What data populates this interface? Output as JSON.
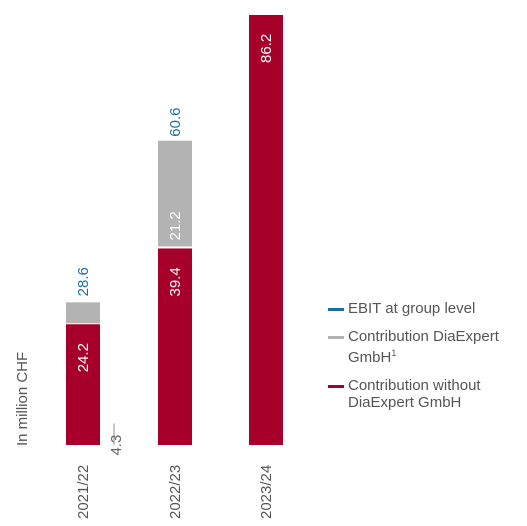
{
  "chart_data": {
    "type": "bar",
    "stacked": true,
    "unit_label": "In million CHF",
    "categories": [
      "2021/22",
      "2022/23",
      "2023/24"
    ],
    "series": [
      {
        "name": "Contribution without DiaExpert GmbH",
        "color": "#a6002a",
        "values": [
          24.2,
          39.4,
          86.2
        ]
      },
      {
        "name": "Contribution DiaExpert GmbH",
        "footnote": "1",
        "color": "#b3b3b3",
        "values": [
          4.3,
          21.2,
          null
        ]
      }
    ],
    "group_totals": {
      "name": "EBIT at group level",
      "color": "#1a6fa0",
      "values": [
        28.6,
        60.6,
        86.2
      ],
      "labels": [
        "28.6",
        "60.6",
        ""
      ]
    },
    "segment_labels": {
      "Contribution without DiaExpert GmbH": [
        "24.2",
        "39.4",
        "86.2"
      ],
      "Contribution DiaExpert GmbH": [
        "4.3",
        "21.2",
        ""
      ]
    },
    "legend": [
      "EBIT at group level",
      "Contribution DiaExpert GmbH",
      "Contribution without DiaExpert GmbH"
    ],
    "legend_position": "right",
    "ylim": [
      0,
      86.2
    ],
    "grid": false
  }
}
